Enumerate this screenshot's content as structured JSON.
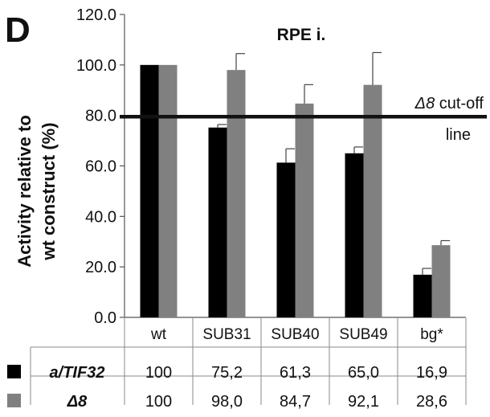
{
  "panel_letter": "D",
  "chart_data": {
    "type": "bar",
    "title": "RPE i.",
    "ylabel": "Activity relative to wt construct (%)",
    "ylabel_lines": [
      "Activity relative to",
      "wt construct (%)"
    ],
    "xlabel": "",
    "ylim": [
      0,
      120
    ],
    "yticks": [
      0,
      20,
      40,
      60,
      80,
      100,
      120
    ],
    "ytick_labels": [
      "0.0",
      "20.0",
      "40.0",
      "60.0",
      "80.0",
      "100.0",
      "120.0"
    ],
    "categories": [
      "wt",
      "SUB31",
      "SUB40",
      "SUB49",
      "bg*"
    ],
    "series": [
      {
        "name": "a/TIF32",
        "color": "#000000",
        "values": [
          100,
          75.2,
          61.3,
          65.0,
          16.9
        ],
        "labels": [
          "100",
          "75,2",
          "61,3",
          "65,0",
          "16,9"
        ],
        "error": [
          0,
          1.2,
          5.5,
          2.5,
          2.5
        ]
      },
      {
        "name": "Δ8",
        "color": "#808080",
        "values": [
          100,
          98.0,
          84.7,
          92.1,
          28.6
        ],
        "labels": [
          "100",
          "98,0",
          "84,7",
          "92,1",
          "28,6"
        ],
        "error": [
          0,
          6.5,
          7.5,
          12.8,
          1.8
        ]
      }
    ],
    "reference_line": {
      "value": 79.5,
      "label_italic": "Δ8",
      "label_rest": " cut-off",
      "label_line2": "line"
    },
    "grid": false,
    "legend": "table-left"
  }
}
